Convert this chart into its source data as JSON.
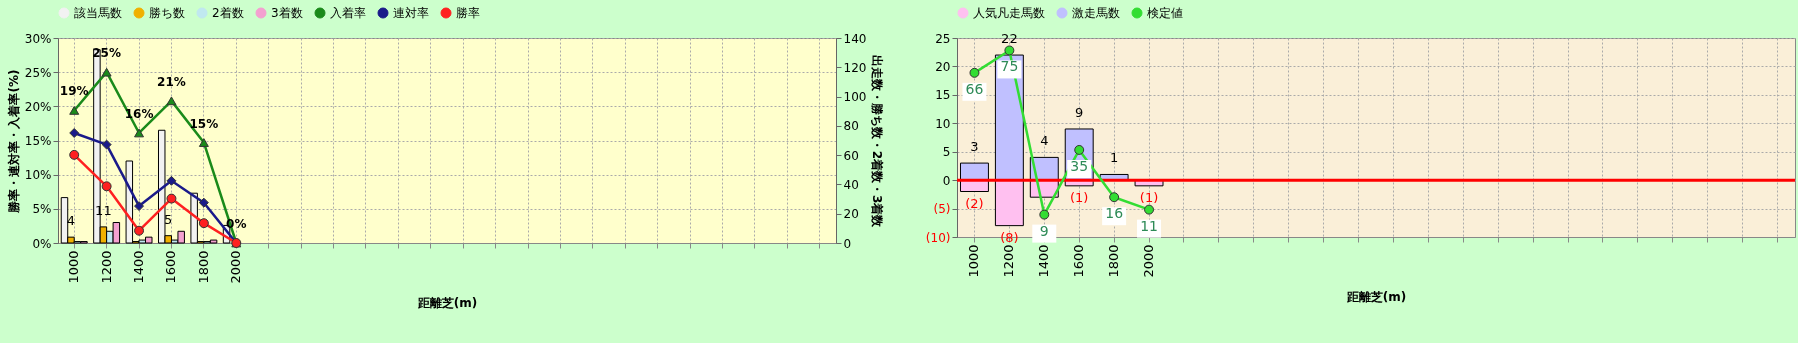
{
  "chart_data": [
    {
      "type": "bar",
      "xlabel": "距離芝(m)",
      "ylabel": "勝率・連対率・入着率(%)",
      "y2label": "出走数・勝ち数・2着数・3着数",
      "legend": "top",
      "grid": true,
      "categories": [
        "1000",
        "1200",
        "1400",
        "1600",
        "1800",
        "2000",
        null,
        null,
        null,
        null,
        null,
        null,
        null,
        null,
        null,
        null,
        null,
        null,
        null,
        null,
        null,
        null,
        null,
        null
      ],
      "ylim": [
        0,
        30
      ],
      "yticks": [
        {
          "value": 0,
          "label": "0%"
        },
        {
          "value": 5,
          "label": "5%"
        },
        {
          "value": 10,
          "label": "10%"
        },
        {
          "value": 15,
          "label": "15%"
        },
        {
          "value": 20,
          "label": "20%"
        },
        {
          "value": 25,
          "label": "25%"
        },
        {
          "value": 30,
          "label": "30%"
        }
      ],
      "y2lim": [
        0,
        140
      ],
      "y2ticks": [
        0,
        20,
        40,
        60,
        80,
        100,
        120,
        140
      ],
      "series": [
        {
          "name": "該当馬数",
          "axis": "y2",
          "color": "#f2f2f2",
          "values": [
            31,
            132,
            56,
            77,
            34,
            12,
            null,
            null,
            null,
            null,
            null,
            null,
            null,
            null,
            null,
            null,
            null,
            null,
            null,
            null,
            null,
            null,
            null,
            null
          ]
        },
        {
          "name": "勝ち数",
          "axis": "y2",
          "color": "#f0b000",
          "values": [
            4,
            11,
            1,
            5,
            1,
            0,
            null,
            null,
            null,
            null,
            null,
            null,
            null,
            null,
            null,
            null,
            null,
            null,
            null,
            null,
            null,
            null,
            null,
            null
          ],
          "value_labels": [
            "4",
            "11",
            null,
            "5",
            null,
            null,
            null,
            null,
            null,
            null,
            null,
            null,
            null,
            null,
            null,
            null,
            null,
            null,
            null,
            null,
            null,
            null,
            null,
            null
          ]
        },
        {
          "name": "2着数",
          "axis": "y2",
          "color": "#c0e8f0",
          "values": [
            1,
            8,
            2,
            2,
            1,
            0,
            null,
            null,
            null,
            null,
            null,
            null,
            null,
            null,
            null,
            null,
            null,
            null,
            null,
            null,
            null,
            null,
            null,
            null
          ]
        },
        {
          "name": "3着数",
          "axis": "y2",
          "color": "#f4a0d0",
          "values": [
            1,
            14,
            4,
            8,
            2,
            0,
            null,
            null,
            null,
            null,
            null,
            null,
            null,
            null,
            null,
            null,
            null,
            null,
            null,
            null,
            null,
            null,
            null,
            null
          ]
        },
        {
          "name": "入着率",
          "type": "line",
          "marker": "triangle",
          "color": "#1a8a1a",
          "values": [
            19.4,
            25,
            16.1,
            20.8,
            14.7,
            0,
            null,
            null,
            null,
            null,
            null,
            null,
            null,
            null,
            null,
            null,
            null,
            null,
            null,
            null,
            null,
            null,
            null,
            null
          ],
          "value_labels": [
            "19%",
            "25%",
            "16%",
            "21%",
            "15%",
            "0%",
            null,
            null,
            null,
            null,
            null,
            null,
            null,
            null,
            null,
            null,
            null,
            null,
            null,
            null,
            null,
            null,
            null,
            null
          ]
        },
        {
          "name": "連対率",
          "type": "line",
          "marker": "diamond",
          "color": "#1a1a8a",
          "values": [
            16.1,
            14.4,
            5.4,
            9.1,
            5.9,
            0,
            null,
            null,
            null,
            null,
            null,
            null,
            null,
            null,
            null,
            null,
            null,
            null,
            null,
            null,
            null,
            null,
            null,
            null
          ]
        },
        {
          "name": "勝率",
          "type": "line",
          "marker": "circle",
          "color": "#ff2020",
          "values": [
            12.9,
            8.3,
            1.8,
            6.5,
            2.9,
            0,
            null,
            null,
            null,
            null,
            null,
            null,
            null,
            null,
            null,
            null,
            null,
            null,
            null,
            null,
            null,
            null,
            null,
            null
          ]
        }
      ]
    },
    {
      "type": "bar",
      "stacked": true,
      "xlabel": "距離芝(m)",
      "legend": "top",
      "grid": true,
      "categories": [
        "1000",
        "1200",
        "1400",
        "1600",
        "1800",
        "2000",
        null,
        null,
        null,
        null,
        null,
        null,
        null,
        null,
        null,
        null,
        null,
        null,
        null,
        null,
        null,
        null,
        null,
        null
      ],
      "ylim": [
        -10,
        25
      ],
      "yticks": [
        {
          "value": -10,
          "label": "(10)"
        },
        {
          "value": -5,
          "label": "(5)"
        },
        0,
        5,
        10,
        15,
        20,
        25
      ],
      "y2lim": [
        0,
        80
      ],
      "ref_lines": [
        {
          "axis": "y",
          "value": 0,
          "color": "#ff0000"
        }
      ],
      "series": [
        {
          "name": "人気凡走馬数",
          "color": "#ffc0f0",
          "values": [
            -2,
            -8,
            -3,
            -1,
            0,
            -1,
            null,
            null,
            null,
            null,
            null,
            null,
            null,
            null,
            null,
            null,
            null,
            null,
            null,
            null,
            null,
            null,
            null,
            null
          ],
          "value_labels": [
            "(2)",
            "(8)",
            null,
            "(1)",
            null,
            "(1)",
            null,
            null,
            null,
            null,
            null,
            null,
            null,
            null,
            null,
            null,
            null,
            null,
            null,
            null,
            null,
            null,
            null,
            null
          ]
        },
        {
          "name": "激走馬数",
          "color": "#c0c0ff",
          "values": [
            3,
            22,
            4,
            9,
            1,
            0,
            null,
            null,
            null,
            null,
            null,
            null,
            null,
            null,
            null,
            null,
            null,
            null,
            null,
            null,
            null,
            null,
            null,
            null
          ],
          "value_labels": [
            "3",
            "22",
            "4",
            "9",
            "1",
            null,
            null,
            null,
            null,
            null,
            null,
            null,
            null,
            null,
            null,
            null,
            null,
            null,
            null,
            null,
            null,
            null,
            null,
            null
          ]
        },
        {
          "name": "検定値",
          "type": "line",
          "axis": "y2",
          "marker": "circle",
          "color": "#33dd33",
          "values": [
            66,
            75,
            9,
            35,
            16,
            11,
            null,
            null,
            null,
            null,
            null,
            null,
            null,
            null,
            null,
            null,
            null,
            null,
            null,
            null,
            null,
            null,
            null,
            null
          ],
          "value_labels": [
            "66",
            "75",
            "9",
            "35",
            "16",
            "11",
            null,
            null,
            null,
            null,
            null,
            null,
            null,
            null,
            null,
            null,
            null,
            null,
            null,
            null,
            null,
            null,
            null,
            null
          ]
        }
      ]
    }
  ]
}
